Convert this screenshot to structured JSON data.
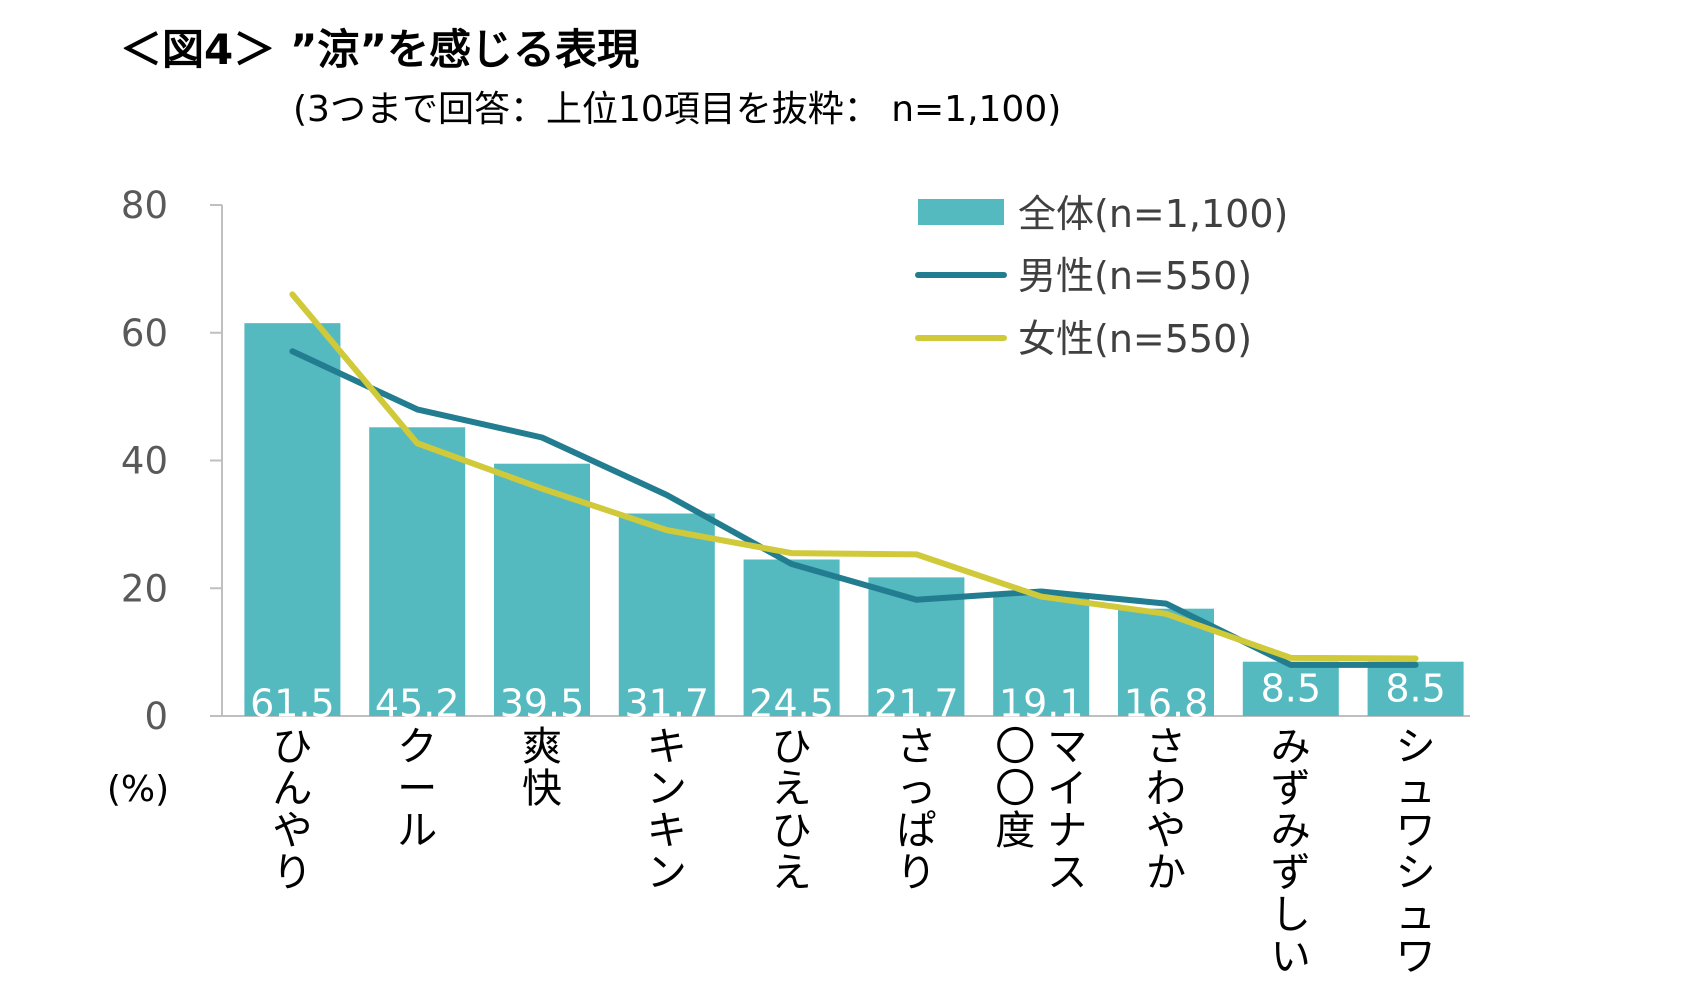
{
  "chart_data": {
    "type": "bar",
    "title": "＜図4＞ ”涼”を感じる表現",
    "subtitle": "(3つまで回答：上位10項目を抜粋： n=1,100)",
    "ylabel": "(%)",
    "ylim": [
      0,
      80
    ],
    "yticks": [
      0,
      20,
      40,
      60,
      80
    ],
    "grid": false,
    "legend_position": "top-right",
    "categories": [
      "ひんやり",
      "クール",
      "爽快",
      "キンキン",
      "ひえひえ",
      "さっぱり",
      "マイナス〇〇度",
      "さわやか",
      "みずみずしい",
      "シュワシュワ"
    ],
    "category_columns": [
      [
        "ひんやり"
      ],
      [
        "クール"
      ],
      [
        "爽快"
      ],
      [
        "キンキン"
      ],
      [
        "ひえひえ"
      ],
      [
        "さっぱり"
      ],
      [
        "マイナス",
        "〇〇度"
      ],
      [
        "さわやか"
      ],
      [
        "みずみずしい"
      ],
      [
        "シュワシュワ"
      ]
    ],
    "data_labels": [
      "61.5",
      "45.2",
      "39.5",
      "31.7",
      "24.5",
      "21.7",
      "19.1",
      "16.8",
      "8.5",
      "8.5"
    ],
    "series": [
      {
        "name": "全体(n=1,100)",
        "type": "bar",
        "color": "#55b9c0",
        "values": [
          61.5,
          45.2,
          39.5,
          31.7,
          24.5,
          21.7,
          19.1,
          16.8,
          8.5,
          8.5
        ]
      },
      {
        "name": "男性(n=550)",
        "type": "line",
        "color": "#217d8f",
        "values": [
          57.1,
          48.0,
          43.6,
          34.6,
          23.8,
          18.2,
          19.5,
          17.6,
          8.0,
          8.0
        ]
      },
      {
        "name": "女性(n=550)",
        "type": "line",
        "color": "#d0c93a",
        "values": [
          66.0,
          42.7,
          35.6,
          29.1,
          25.5,
          25.3,
          18.7,
          16.0,
          9.1,
          9.0
        ]
      }
    ]
  }
}
